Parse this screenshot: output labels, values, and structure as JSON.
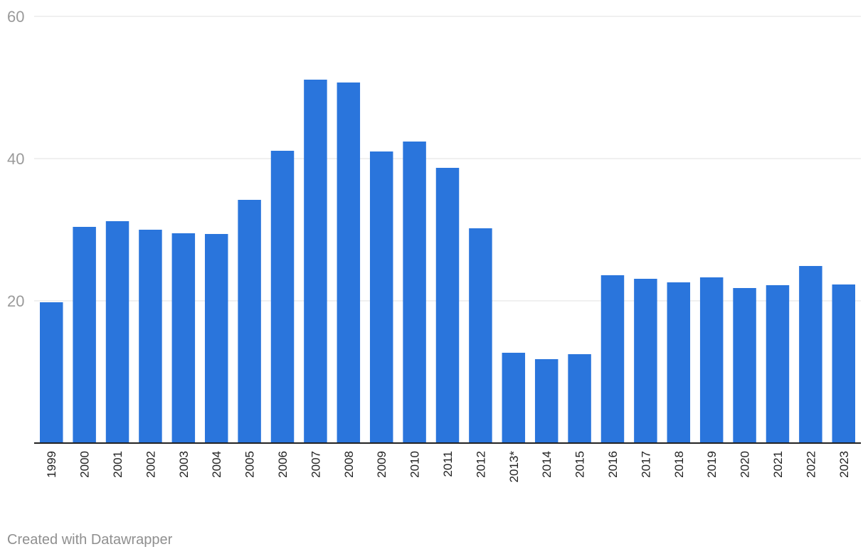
{
  "chart_data": {
    "type": "bar",
    "categories": [
      "1999",
      "2000",
      "2001",
      "2002",
      "2003",
      "2004",
      "2005",
      "2006",
      "2007",
      "2008",
      "2009",
      "2010",
      "2011",
      "2012",
      "2013*",
      "2014",
      "2015",
      "2016",
      "2017",
      "2018",
      "2019",
      "2020",
      "2021",
      "2022",
      "2023"
    ],
    "values": [
      19.8,
      30.4,
      31.2,
      30.0,
      29.5,
      29.4,
      34.2,
      41.1,
      51.1,
      50.7,
      41.0,
      42.4,
      38.7,
      30.2,
      12.7,
      11.8,
      12.5,
      23.6,
      23.1,
      22.6,
      23.3,
      21.8,
      22.2,
      24.9,
      22.3
    ],
    "ylim": [
      0,
      60
    ],
    "yticks": [
      20,
      40,
      60
    ],
    "grid": true,
    "bar_color": "#2a75dc",
    "title": "",
    "xlabel": "",
    "ylabel": ""
  },
  "footer": {
    "credit": "Created with Datawrapper"
  }
}
